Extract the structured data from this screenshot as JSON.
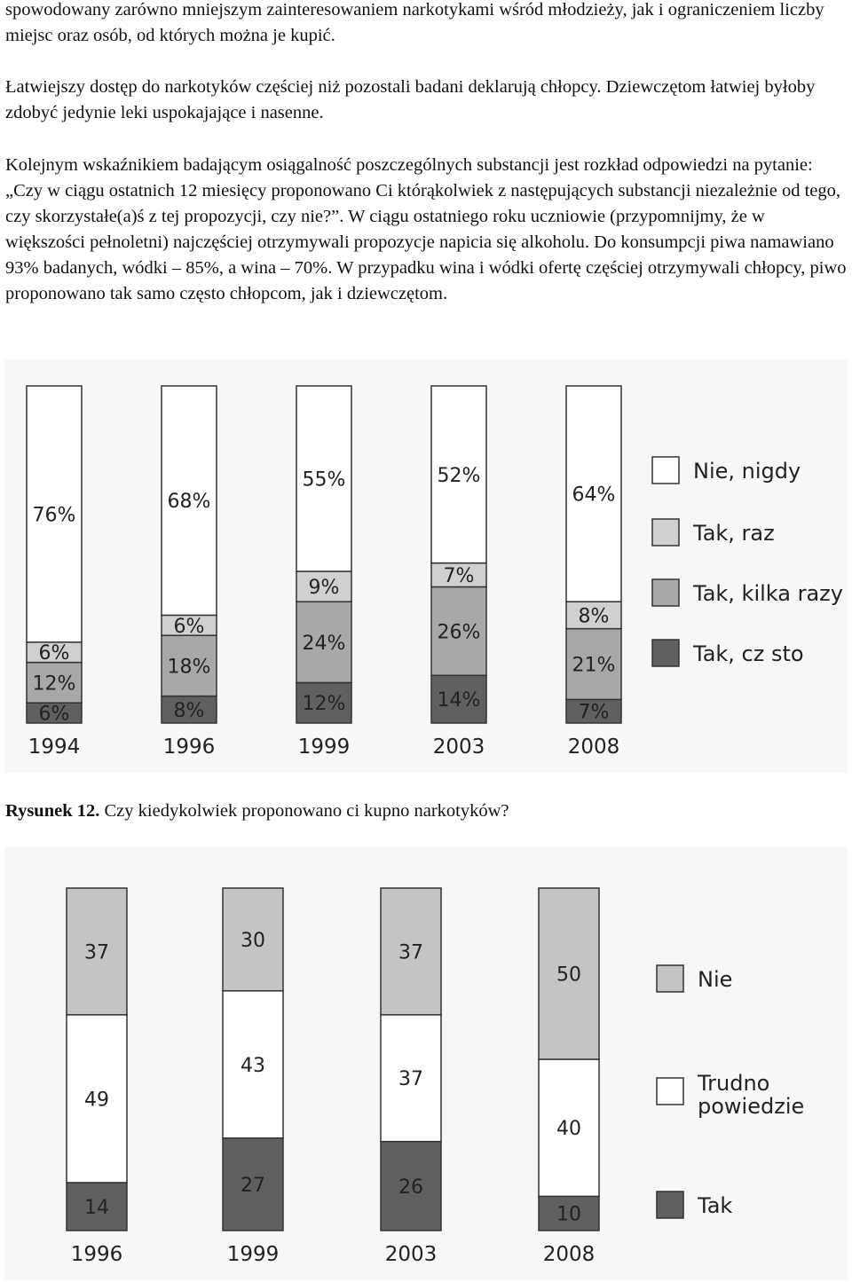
{
  "paragraphs": [
    "spowodowany zarówno mniejszym zainteresowaniem narkotykami wśród młodzieży, jak i ograniczeniem liczby miejsc oraz osób, od których można je kupić.",
    "Łatwiejszy dostęp do narkotyków częściej niż pozostali badani deklarują chłopcy. Dziewczętom łatwiej byłoby zdobyć jedynie leki uspokajające i nasenne.",
    "Kolejnym wskaźnikiem badającym osiągalność poszczególnych substancji jest rozkład odpowiedzi na pytanie: „Czy w ciągu ostatnich 12 miesięcy proponowano Ci którąkolwiek z następujących substancji niezależnie od tego, czy skorzystałe(a)ś z tej propozycji, czy nie?”. W ciągu ostatniego roku uczniowie (przypomnijmy, że w większości pełnoletni) najczęściej otrzymywali propozycje napicia się alkoholu. Do konsumpcji piwa namawiano 93% badanych, wódki – 85%, a wina – 70%. W przypadku wina i wódki ofertę częściej otrzymywali chłopcy, piwo proponowano tak samo często chłopcom, jak i dziewczętom."
  ],
  "caption": {
    "label": "Rysunek 12.",
    "text": " Czy kiedykolwiek proponowano ci kupno narkotyków?"
  },
  "colors": {
    "white": "#ffffff",
    "light_gray": "#d0d0d0",
    "mid_gray": "#a8a8a8",
    "dark_gray": "#606060"
  },
  "chart_data": [
    {
      "type": "bar",
      "stacked": true,
      "orientation": "vertical",
      "percent": true,
      "categories": [
        "1994",
        "1996",
        "1999",
        "2003",
        "2008"
      ],
      "series": [
        {
          "name": "Tak, cz sto",
          "values": [
            6,
            8,
            12,
            14,
            7
          ],
          "color": "#606060"
        },
        {
          "name": "Tak, kilka razy",
          "values": [
            12,
            18,
            24,
            26,
            21
          ],
          "color": "#a8a8a8"
        },
        {
          "name": "Tak, raz",
          "values": [
            6,
            6,
            9,
            7,
            8
          ],
          "color": "#d0d0d0"
        },
        {
          "name": "Nie, nigdy",
          "values": [
            76,
            68,
            55,
            52,
            64
          ],
          "color": "#ffffff"
        }
      ],
      "legend": {
        "placement": "right",
        "order": [
          "Nie, nigdy",
          "Tak, raz",
          "Tak, kilka razy",
          "Tak, cz sto"
        ]
      },
      "label_suffix": "%"
    },
    {
      "type": "bar",
      "stacked": true,
      "orientation": "vertical",
      "categories": [
        "1996",
        "1999",
        "2003",
        "2008"
      ],
      "series": [
        {
          "name": "Tak",
          "values": [
            14,
            27,
            26,
            10
          ],
          "color": "#606060"
        },
        {
          "name": "Trudno powiedzie",
          "values": [
            49,
            43,
            37,
            40
          ],
          "color": "#ffffff"
        },
        {
          "name": "Nie",
          "values": [
            37,
            30,
            37,
            50
          ],
          "color": "#c4c4c4"
        }
      ],
      "legend": {
        "placement": "right",
        "order": [
          "Nie",
          "Trudno powiedzie",
          "Tak"
        ]
      },
      "label_suffix": ""
    }
  ]
}
